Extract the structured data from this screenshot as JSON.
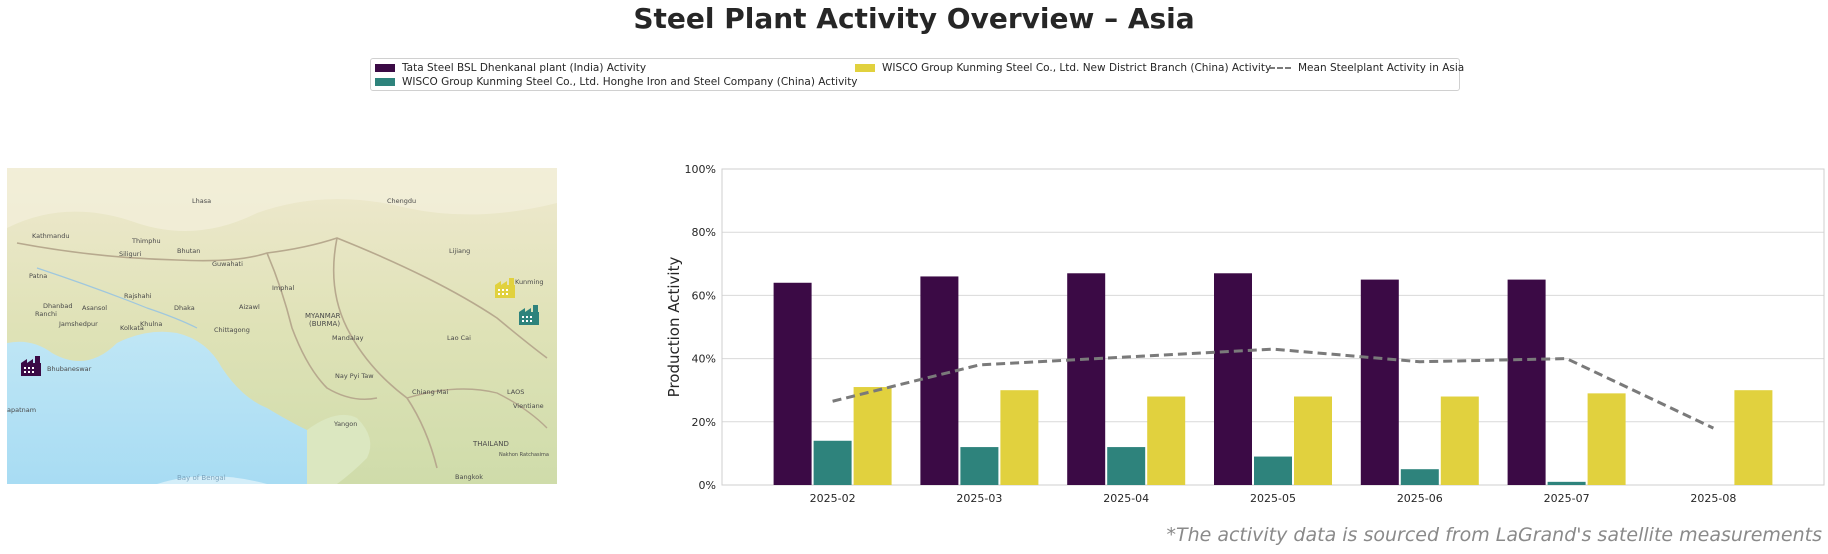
{
  "title": "Steel Plant Activity Overview – Asia",
  "footnote": "*The activity data is sourced from LaGrand's satellite measurements",
  "legend": {
    "items": [
      {
        "label": "Tata Steel BSL Dhenkanal plant (India) Activity",
        "color": "#3b0a45"
      },
      {
        "label": "WISCO Group Kunming Steel Co., Ltd. Honghe Iron and Steel Company (China) Activity",
        "color": "#2e837c"
      },
      {
        "label": "WISCO Group Kunming Steel Co., Ltd. New District Branch (China) Activity",
        "color": "#e1d13e"
      }
    ],
    "mean_label": "Mean Steelplant Activity in Asia",
    "mean_color": "#7a7a7a"
  },
  "map": {
    "labels": [
      "Lhasa",
      "Kathmandu",
      "Thimphu",
      "Bhutan",
      "Guwahati",
      "Siliguri",
      "Patna",
      "Dhanbad",
      "Asansol",
      "Rajshahi",
      "Ranchi",
      "Khulna",
      "Dhaka",
      "Aizawl",
      "Imphal",
      "Jamshedpur",
      "Kolkata",
      "Chittagong",
      "MYANMAR",
      "(BURMA)",
      "Mandalay",
      "Lijiang",
      "Kunming",
      "Chengdu",
      "Lao Cai",
      "Bhubaneswar",
      "Nay Pyi Taw",
      "Chiang Mai",
      "LAOS",
      "Vientiane",
      "Yangon",
      "THAILAND",
      "Nakhon Ratchasima",
      "Bangkok",
      "Bay of Bengal",
      "apatnam"
    ],
    "plant_icons": [
      "factory-icon-tata",
      "factory-icon-honghe",
      "factory-icon-kunming-new"
    ]
  },
  "chart_data": {
    "type": "bar",
    "ylabel": "Production Activity",
    "ylim": [
      0,
      100
    ],
    "yticks": [
      "0%",
      "20%",
      "40%",
      "60%",
      "80%",
      "100%"
    ],
    "categories": [
      "2025-02",
      "2025-03",
      "2025-04",
      "2025-05",
      "2025-06",
      "2025-07",
      "2025-08"
    ],
    "series": [
      {
        "name": "Tata Steel BSL Dhenkanal plant (India) Activity",
        "color": "#3b0a45",
        "values": [
          64,
          66,
          67,
          67,
          65,
          65,
          null
        ]
      },
      {
        "name": "WISCO Group Kunming Steel Co., Ltd. Honghe Iron and Steel Company (China) Activity",
        "color": "#2e837c",
        "values": [
          14,
          12,
          12,
          9,
          5,
          1,
          null
        ]
      },
      {
        "name": "WISCO Group Kunming Steel Co., Ltd. New District Branch (China) Activity",
        "color": "#e1d13e",
        "values": [
          31,
          30,
          28,
          28,
          28,
          29,
          30
        ]
      }
    ],
    "mean_line": {
      "name": "Mean Steelplant Activity in Asia",
      "values": [
        26.5,
        38,
        40.5,
        43,
        39,
        40,
        18
      ]
    },
    "grid": true
  }
}
